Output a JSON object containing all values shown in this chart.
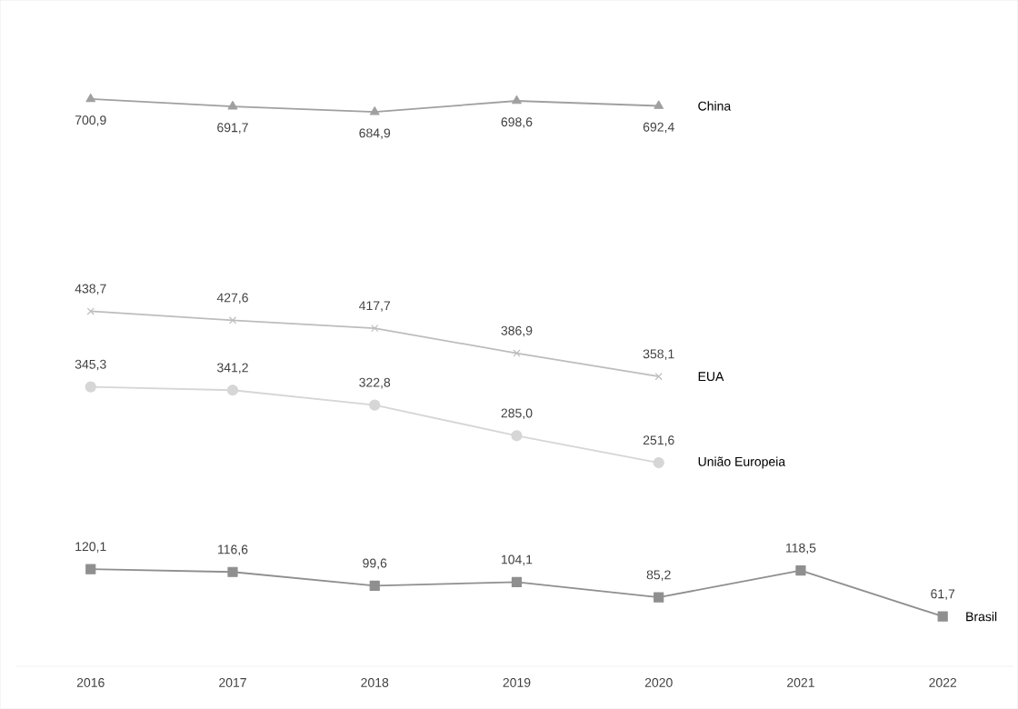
{
  "chart_data": {
    "type": "line",
    "categories": [
      "2016",
      "2017",
      "2018",
      "2019",
      "2020",
      "2021",
      "2022"
    ],
    "series": [
      {
        "name": "China",
        "color": "#a0a0a0",
        "marker": "triangle",
        "values": [
          700.9,
          691.7,
          684.9,
          698.6,
          692.4,
          null,
          null
        ],
        "value_labels": [
          "700,9",
          "691,7",
          "684,9",
          "698,6",
          "692,4",
          null,
          null
        ]
      },
      {
        "name": "EUA",
        "color": "#bdbdbd",
        "marker": "cross",
        "values": [
          438.7,
          427.6,
          417.7,
          386.9,
          358.1,
          null,
          null
        ],
        "value_labels": [
          "438,7",
          "427,6",
          "417,7",
          "386,9",
          "358,1",
          null,
          null
        ]
      },
      {
        "name": "União Europeia",
        "color": "#d6d6d6",
        "marker": "circle",
        "values": [
          345.3,
          341.2,
          322.8,
          285.0,
          251.6,
          null,
          null
        ],
        "value_labels": [
          "345,3",
          "341,2",
          "322,8",
          "285,0",
          "251,6",
          null,
          null
        ]
      },
      {
        "name": "Brasil",
        "color": "#8f8f8f",
        "marker": "square",
        "values": [
          120.1,
          116.6,
          99.6,
          104.1,
          85.2,
          118.5,
          61.7
        ],
        "value_labels": [
          "120,1",
          "116,6",
          "99,6",
          "104,1",
          "85,2",
          "118,5",
          "61,7"
        ]
      }
    ],
    "tick_labels": "x",
    "legend": false
  }
}
